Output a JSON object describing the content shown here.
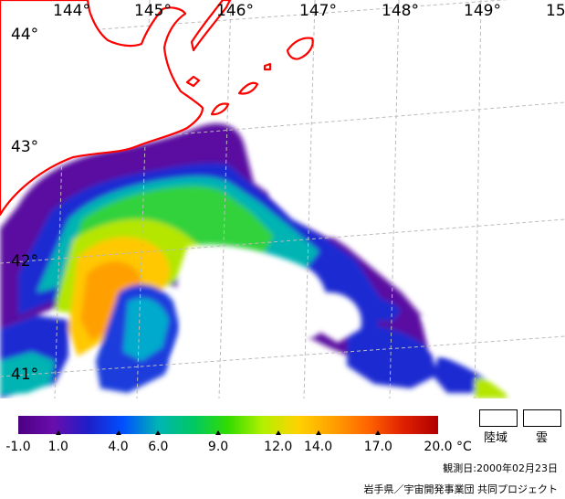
{
  "map": {
    "longitude_labels": [
      "144°",
      "145°",
      "146°",
      "147°",
      "148°",
      "149°",
      "15"
    ],
    "latitude_labels": [
      "44°",
      "43°",
      "42°",
      "41°"
    ],
    "colors": {
      "coastline": "#ff0000",
      "grid": "#bbbbbb",
      "land_or_no_data": "#ffffff"
    }
  },
  "legend": {
    "min": -1.0,
    "max": 20.0,
    "tick_labels": [
      "-1.0",
      "1.0",
      "4.0",
      "6.0",
      "9.0",
      "12.0",
      "14.0",
      "17.0",
      "20.0"
    ],
    "unit": "°C",
    "gradient_colors": [
      "#4b0082",
      "#6a0dad",
      "#1e1ec8",
      "#0050ff",
      "#00b4b4",
      "#00c864",
      "#32dc00",
      "#b4f000",
      "#ffd200",
      "#ffa000",
      "#ff6400",
      "#e02000",
      "#b00000"
    ],
    "keys": [
      {
        "label": "陸域",
        "color": "#ffffff"
      },
      {
        "label": "雲",
        "color": "#ffffff"
      }
    ]
  },
  "footer": {
    "obs_date": "観測日:2000年02月23日",
    "credit": "岩手県／宇宙開発事業団 共同プロジェクト"
  }
}
